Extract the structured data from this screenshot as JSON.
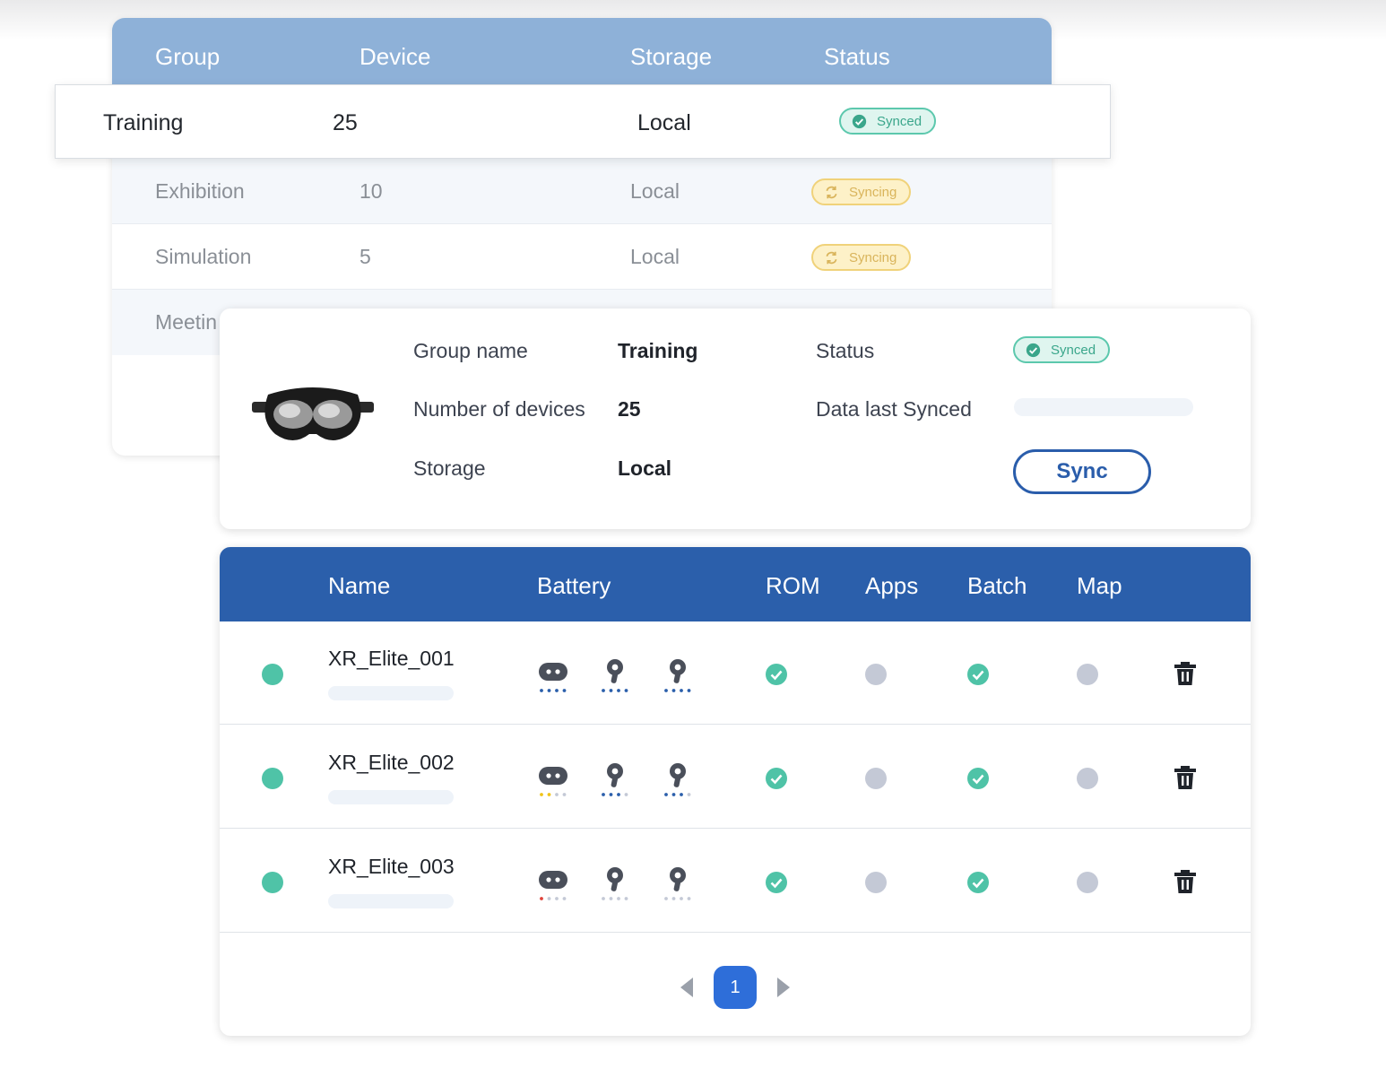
{
  "groups_table": {
    "headers": [
      "Group",
      "Device",
      "Storage",
      "Status"
    ],
    "rows": [
      {
        "group": "Training",
        "device": "25",
        "storage": "Local",
        "status": "Synced"
      },
      {
        "group": "Exhibition",
        "device": "10",
        "storage": "Local",
        "status": "Syncing"
      },
      {
        "group": "Simulation",
        "device": "5",
        "storage": "Local",
        "status": "Syncing"
      },
      {
        "group": "Meetin",
        "device": "",
        "storage": "",
        "status": ""
      }
    ]
  },
  "detail": {
    "group_name_label": "Group name",
    "group_name_value": "Training",
    "devices_label": "Number of devices",
    "devices_value": "25",
    "storage_label": "Storage",
    "storage_value": "Local",
    "status_label": "Status",
    "status_value": "Synced",
    "last_synced_label": "Data last Synced",
    "sync_button": "Sync",
    "image_icon": "vr-headset-icon"
  },
  "devices_table": {
    "headers": [
      "Name",
      "Battery",
      "ROM",
      "Apps",
      "Batch",
      "Map"
    ],
    "rows": [
      {
        "name": "XR_Elite_001",
        "headset_battery": 4,
        "controller_left_battery": 4,
        "controller_right_battery": 4,
        "headset_battery_color": "#2b5fab",
        "rom": "ok",
        "apps": "pending",
        "batch": "ok",
        "map": "pending"
      },
      {
        "name": "XR_Elite_002",
        "headset_battery": 2,
        "controller_left_battery": 3,
        "controller_right_battery": 3,
        "headset_battery_color": "#f0c419",
        "rom": "ok",
        "apps": "pending",
        "batch": "ok",
        "map": "pending"
      },
      {
        "name": "XR_Elite_003",
        "headset_battery": 1,
        "controller_left_battery": 0,
        "controller_right_battery": 0,
        "headset_battery_color": "#e0433b",
        "rom": "ok",
        "apps": "pending",
        "batch": "ok",
        "map": "pending"
      }
    ]
  },
  "pagination": {
    "current_page": "1"
  },
  "colors": {
    "groups_header": "#8eb1d8",
    "devices_header": "#2b5fab",
    "synced": "#4fc3a7",
    "syncing": "#f0d27a",
    "pending": "#c4c9d6",
    "accent": "#2e6ed9"
  }
}
